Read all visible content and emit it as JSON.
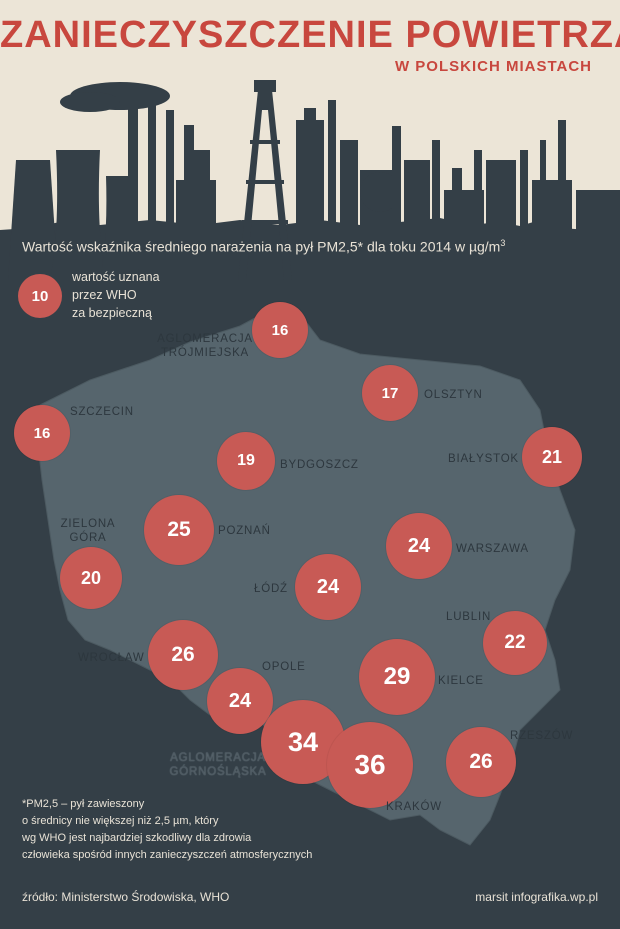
{
  "header": {
    "title": "ZANIECZYSZCZENIE POWIETRZA",
    "subtitle": "W POLSKICH MIASTACH"
  },
  "caption": {
    "text": "Wartość wskaźnika średniego narażenia na pył PM2,5* dla toku 2014 w µg/m",
    "superscript": "3"
  },
  "legend": {
    "value": "10",
    "lines": [
      "wartość uznana",
      "przez WHO",
      "za bezpieczną"
    ]
  },
  "cities": [
    {
      "id": "trojmiasto",
      "label_lines": [
        "AGLOMERACJA",
        "TRÓJMIEJSKA"
      ],
      "value": "16"
    },
    {
      "id": "olsztyn",
      "label_lines": [
        "OLSZTYN"
      ],
      "value": "17"
    },
    {
      "id": "szczecin",
      "label_lines": [
        "SZCZECIN"
      ],
      "value": "16"
    },
    {
      "id": "bydgoszcz",
      "label_lines": [
        "BYDGOSZCZ"
      ],
      "value": "19"
    },
    {
      "id": "bialystok",
      "label_lines": [
        "BIAŁYSTOK"
      ],
      "value": "21"
    },
    {
      "id": "poznan",
      "label_lines": [
        "POZNAŃ"
      ],
      "value": "25"
    },
    {
      "id": "zielona-gora",
      "label_lines": [
        "ZIELONA",
        "GÓRA"
      ],
      "value": "20"
    },
    {
      "id": "warszawa",
      "label_lines": [
        "WARSZAWA"
      ],
      "value": "24"
    },
    {
      "id": "lodz",
      "label_lines": [
        "ŁÓDŹ"
      ],
      "value": "24"
    },
    {
      "id": "lublin",
      "label_lines": [
        "LUBLIN"
      ],
      "value": "22"
    },
    {
      "id": "wroclaw",
      "label_lines": [
        "WROCŁAW"
      ],
      "value": "26"
    },
    {
      "id": "opole",
      "label_lines": [
        "OPOLE"
      ],
      "value": "24"
    },
    {
      "id": "kielce",
      "label_lines": [
        "KIELCE"
      ],
      "value": "29"
    },
    {
      "id": "gornoslaska",
      "label_lines": [
        "AGLOMERACJA",
        "GÓRNOŚLĄSKA"
      ],
      "value": "34"
    },
    {
      "id": "krakow",
      "label_lines": [
        "KRAKÓW"
      ],
      "value": "36"
    },
    {
      "id": "rzeszow",
      "label_lines": [
        "RZESZÓW"
      ],
      "value": "26"
    }
  ],
  "footnote": [
    "*PM2,5 – pył zawieszony",
    "o średnicy nie większej niż 2,5 µm, który",
    "wg WHO jest najbardziej szkodliwy dla zdrowia",
    "człowieka spośród innych zanieczyszczeń atmosferycznych"
  ],
  "source": "źródło: Ministerstwo Środowiska, WHO",
  "credit": "marsit infografika.wp.pl",
  "colors": {
    "background": "#343f47",
    "sky": "#ece5d7",
    "map": "#56656d",
    "accent": "#c8473e",
    "bubble": "#c85a55"
  }
}
